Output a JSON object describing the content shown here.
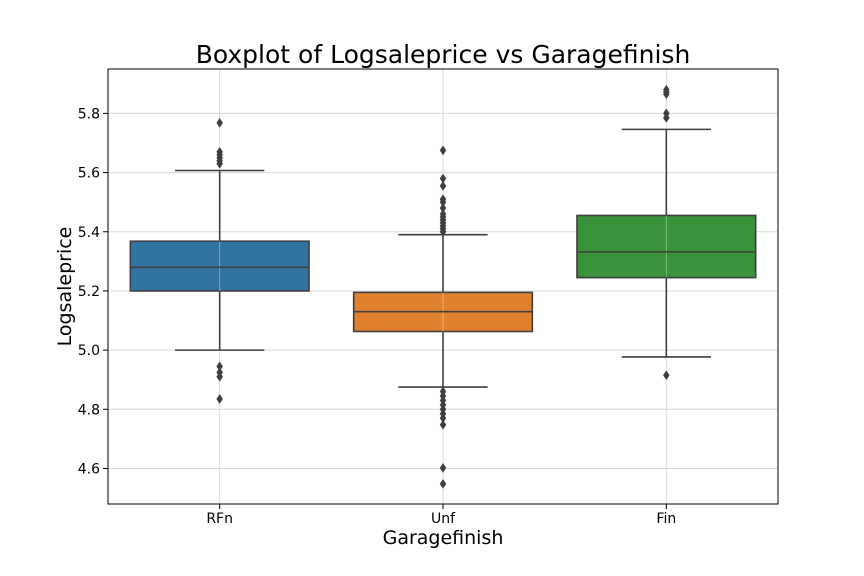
{
  "chart_data": {
    "type": "box",
    "title": "Boxplot of Logsaleprice vs Garagefinish",
    "xlabel": "Garagefinish",
    "ylabel": "Logsaleprice",
    "ylim": [
      4.48,
      5.95
    ],
    "yticks": [
      4.6,
      4.8,
      5.0,
      5.2,
      5.4,
      5.6,
      5.8
    ],
    "grid": true,
    "categories": [
      "RFn",
      "Unf",
      "Fin"
    ],
    "series": [
      {
        "category": "RFn",
        "color": "#3274a1",
        "whisker_low": 5.0,
        "q1": 5.2,
        "median": 5.28,
        "q3": 5.368,
        "whisker_high": 5.607,
        "outliers": [
          4.835,
          4.91,
          4.925,
          4.945,
          5.63,
          5.64,
          5.65,
          5.66,
          5.67,
          5.768
        ]
      },
      {
        "category": "Unf",
        "color": "#e1812c",
        "whisker_low": 4.875,
        "q1": 5.063,
        "median": 5.13,
        "q3": 5.195,
        "whisker_high": 5.39,
        "outliers": [
          4.548,
          4.602,
          4.748,
          4.77,
          4.785,
          4.8,
          4.815,
          4.83,
          4.845,
          4.86,
          5.4,
          5.41,
          5.42,
          5.43,
          5.44,
          5.45,
          5.46,
          5.48,
          5.5,
          5.51,
          5.555,
          5.58,
          5.675
        ]
      },
      {
        "category": "Fin",
        "color": "#3a923a",
        "whisker_low": 4.977,
        "q1": 5.245,
        "median": 5.332,
        "q3": 5.455,
        "whisker_high": 5.746,
        "outliers": [
          4.915,
          5.785,
          5.8,
          5.865,
          5.872,
          5.88
        ]
      }
    ]
  }
}
